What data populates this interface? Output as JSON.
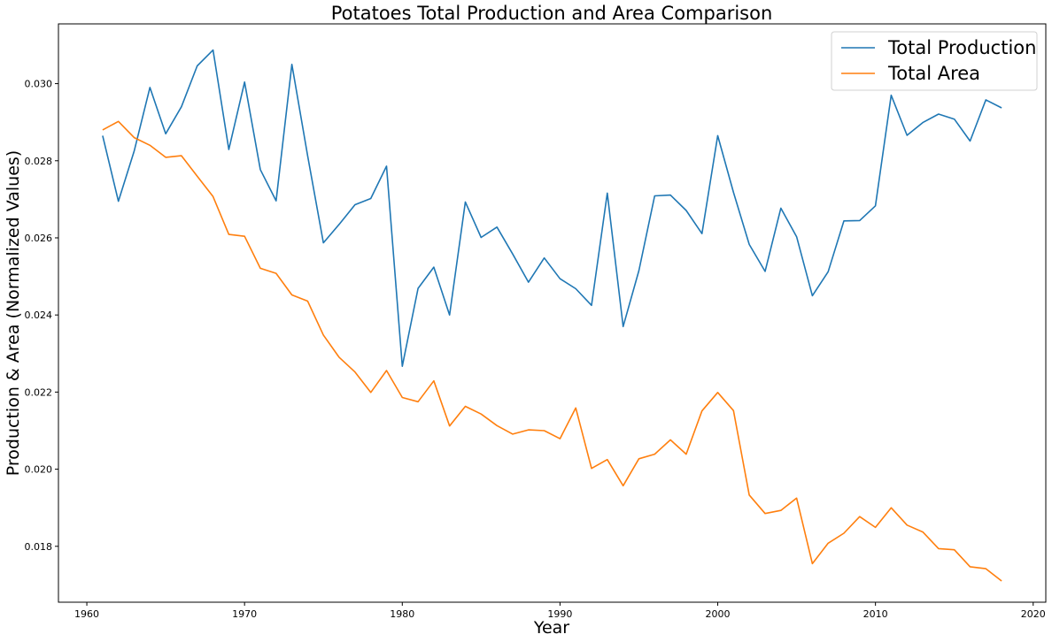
{
  "chart_data": {
    "type": "line",
    "title": "Potatoes Total Production and Area Comparison",
    "xlabel": "Year",
    "ylabel": "Production & Area (Normalized Values)",
    "xlim": [
      1958.2,
      2020.8
    ],
    "ylim": [
      0.01655,
      0.03155
    ],
    "xticks": [
      1960,
      1970,
      1980,
      1990,
      2000,
      2010,
      2020
    ],
    "yticks": [
      0.018,
      0.02,
      0.022,
      0.024,
      0.026,
      0.028,
      0.03
    ],
    "ytick_labels": [
      "0.018",
      "0.020",
      "0.022",
      "0.024",
      "0.026",
      "0.028",
      "0.030"
    ],
    "grid": false,
    "legend_position": "top-right",
    "x": [
      1961,
      1962,
      1963,
      1964,
      1965,
      1966,
      1967,
      1968,
      1969,
      1970,
      1971,
      1972,
      1973,
      1974,
      1975,
      1976,
      1977,
      1978,
      1979,
      1980,
      1981,
      1982,
      1983,
      1984,
      1985,
      1986,
      1987,
      1988,
      1989,
      1990,
      1991,
      1992,
      1993,
      1994,
      1995,
      1996,
      1997,
      1998,
      1999,
      2000,
      2001,
      2002,
      2003,
      2004,
      2005,
      2006,
      2007,
      2008,
      2009,
      2010,
      2011,
      2012,
      2013,
      2014,
      2015,
      2016,
      2017,
      2018
    ],
    "series": [
      {
        "name": "Total Production",
        "color": "#1f77b4",
        "values": [
          0.02865,
          0.02695,
          0.02825,
          0.0299,
          0.0287,
          0.0294,
          0.03046,
          0.03087,
          0.02829,
          0.03004,
          0.02777,
          0.02696,
          0.0305,
          0.02813,
          0.02587,
          0.02635,
          0.02686,
          0.02702,
          0.02786,
          0.02267,
          0.02469,
          0.02524,
          0.024,
          0.02693,
          0.02601,
          0.02628,
          0.02558,
          0.02485,
          0.02548,
          0.02494,
          0.02468,
          0.02425,
          0.02716,
          0.0237,
          0.02515,
          0.02709,
          0.02711,
          0.02671,
          0.02611,
          0.02865,
          0.02718,
          0.02583,
          0.02513,
          0.02677,
          0.02603,
          0.0245,
          0.02512,
          0.02644,
          0.02645,
          0.02683,
          0.0297,
          0.02866,
          0.02899,
          0.02921,
          0.02908,
          0.02851,
          0.02958,
          0.02937
        ]
      },
      {
        "name": "Total Area",
        "color": "#ff7f0e",
        "values": [
          0.0288,
          0.02902,
          0.0286,
          0.0284,
          0.02809,
          0.02813,
          0.0276,
          0.02707,
          0.02609,
          0.02604,
          0.02521,
          0.02508,
          0.02452,
          0.02436,
          0.02348,
          0.0229,
          0.02252,
          0.02199,
          0.02256,
          0.02186,
          0.02175,
          0.02229,
          0.02112,
          0.02163,
          0.02143,
          0.02113,
          0.02091,
          0.02102,
          0.021,
          0.02079,
          0.02159,
          0.02002,
          0.02025,
          0.01957,
          0.02027,
          0.02039,
          0.02076,
          0.02039,
          0.02151,
          0.02199,
          0.02152,
          0.01933,
          0.01885,
          0.01893,
          0.01925,
          0.01755,
          0.01808,
          0.01834,
          0.01877,
          0.01849,
          0.019,
          0.01855,
          0.01837,
          0.01794,
          0.01791,
          0.01747,
          0.01742,
          0.0171
        ]
      }
    ]
  }
}
